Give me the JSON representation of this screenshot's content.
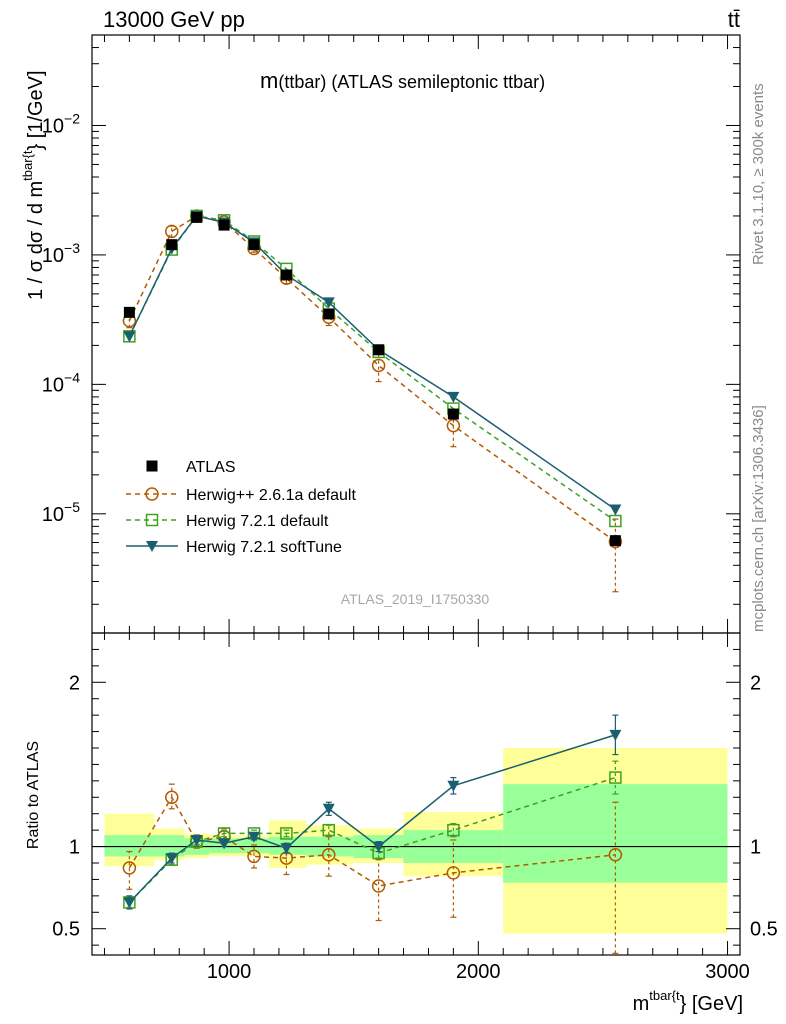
{
  "header": {
    "energy": "13000 GeV pp",
    "process": "tt̄",
    "title_m": "m",
    "title_rest": "(ttbar) (ATLAS semileptonic ttbar)",
    "rivet": "Rivet 3.1.10, ≥ 300k events",
    "mcplots": "mcplots.cern.ch [arXiv:1306.3436]",
    "analysis": "ATLAS_2019_I1750330"
  },
  "labels": {
    "ylabel_main_pre": "1 / σ dσ / d m",
    "ylabel_main_sup": "tbar{t",
    "ylabel_main_post": "} [1/GeV]",
    "ylabel_ratio": "Ratio to ATLAS",
    "xlabel_pre": "m",
    "xlabel_sup": "tbar{t",
    "xlabel_post": "} [GeV]"
  },
  "colors": {
    "data": "#000000",
    "herwigpp": "#b35a00",
    "herwig721": "#3fa124",
    "softtune": "#1b5e70",
    "band_inner": "#99ff99",
    "band_outer": "#ffff99"
  },
  "chart_data": [
    {
      "type": "line",
      "scale": "log",
      "xlim": [
        450,
        3050
      ],
      "ylim": [
        1.2e-06,
        0.05
      ],
      "yticks": [
        {
          "value": 1e-05,
          "base": "10",
          "exp": "−5"
        },
        {
          "value": 0.0001,
          "base": "10",
          "exp": "−4"
        },
        {
          "value": 0.001,
          "base": "10",
          "exp": "−3"
        },
        {
          "value": 0.01,
          "base": "10",
          "exp": "−2"
        }
      ],
      "x": [
        600,
        770,
        870,
        980,
        1100,
        1230,
        1400,
        1600,
        1900,
        2550
      ],
      "series": [
        {
          "name": "ATLAS",
          "key": "data",
          "marker": "square-filled",
          "values": [
            0.00036,
            0.0012,
            0.00195,
            0.0017,
            0.0012,
            0.0007,
            0.00035,
            0.000185,
            5.9e-05,
            6.2e-06
          ]
        },
        {
          "name": "Herwig++ 2.6.1a default",
          "key": "herwigpp",
          "marker": "circle-open",
          "dash": true,
          "values": [
            0.00031,
            0.00152,
            0.002,
            0.0018,
            0.00112,
            0.00066,
            0.00033,
            0.00014,
            4.8e-05,
            6.1e-06
          ],
          "err_lo": [
            3.6e-05,
            0.00015,
            0.0001,
            9e-05,
            7e-05,
            6e-05,
            4.5e-05,
            3.5e-05,
            1.5e-05,
            3.6e-06
          ],
          "err_hi": [
            3.6e-05,
            0.00015,
            0.0001,
            9e-05,
            7e-05,
            6e-05,
            4.5e-05,
            3.5e-05,
            1.5e-05,
            3e-06
          ]
        },
        {
          "name": "Herwig 7.2.1 default",
          "key": "herwig721",
          "marker": "square-open",
          "dash": true,
          "values": [
            0.000235,
            0.0011,
            0.002,
            0.00185,
            0.00127,
            0.00078,
            0.000385,
            0.000178,
            6.5e-05,
            8.8e-06
          ]
        },
        {
          "name": "Herwig 7.2.1 softTune",
          "key": "softtune",
          "marker": "triangle-down-filled",
          "values": [
            0.000235,
            0.00112,
            0.002,
            0.00178,
            0.00125,
            0.0007,
            0.00043,
            0.000185,
            8e-05,
            1.08e-05
          ]
        }
      ]
    },
    {
      "type": "line",
      "scale": "ratio",
      "xlim": [
        450,
        3050
      ],
      "ylim": [
        0.34,
        2.3
      ],
      "ylabel": "Ratio to ATLAS",
      "yticks": [
        0.5,
        1,
        2
      ],
      "xticks": [
        1000,
        2000,
        3000
      ],
      "bins": [
        {
          "lo": 500,
          "hi": 700,
          "inner": [
            0.94,
            1.07
          ],
          "outer": [
            0.88,
            1.2
          ]
        },
        {
          "lo": 700,
          "hi": 820,
          "inner": [
            0.94,
            1.07
          ],
          "outer": [
            0.92,
            1.11
          ]
        },
        {
          "lo": 820,
          "hi": 920,
          "inner": [
            0.95,
            1.05
          ],
          "outer": [
            0.93,
            1.08
          ]
        },
        {
          "lo": 920,
          "hi": 1040,
          "inner": [
            0.96,
            1.05
          ],
          "outer": [
            0.94,
            1.07
          ]
        },
        {
          "lo": 1040,
          "hi": 1160,
          "inner": [
            0.96,
            1.05
          ],
          "outer": [
            0.94,
            1.07
          ]
        },
        {
          "lo": 1160,
          "hi": 1310,
          "inner": [
            0.95,
            1.06
          ],
          "outer": [
            0.87,
            1.16
          ]
        },
        {
          "lo": 1310,
          "hi": 1500,
          "inner": [
            0.94,
            1.06
          ],
          "outer": [
            0.89,
            1.13
          ]
        },
        {
          "lo": 1500,
          "hi": 1700,
          "inner": [
            0.93,
            1.07
          ],
          "outer": [
            0.9,
            1.11
          ]
        },
        {
          "lo": 1700,
          "hi": 2100,
          "inner": [
            0.9,
            1.1
          ],
          "outer": [
            0.82,
            1.21
          ]
        },
        {
          "lo": 2100,
          "hi": 3000,
          "inner": [
            0.78,
            1.38
          ],
          "outer": [
            0.47,
            1.6
          ]
        }
      ],
      "x": [
        600,
        770,
        870,
        980,
        1100,
        1230,
        1400,
        1600,
        1900,
        2550
      ],
      "series": [
        {
          "name": "Herwig++ 2.6.1a default",
          "key": "herwigpp",
          "marker": "circle-open",
          "dash": true,
          "values": [
            0.87,
            1.3,
            1.03,
            1.06,
            0.94,
            0.93,
            0.95,
            0.76,
            0.84,
            0.95
          ],
          "err_lo": [
            0.13,
            0.07,
            0.04,
            0.05,
            0.07,
            0.1,
            0.13,
            0.21,
            0.27,
            0.6
          ],
          "err_hi": [
            0.1,
            0.08,
            0.04,
            0.05,
            0.07,
            0.09,
            0.11,
            0.16,
            0.2,
            0.32
          ]
        },
        {
          "name": "Herwig 7.2.1 default",
          "key": "herwig721",
          "marker": "square-open",
          "dash": true,
          "values": [
            0.66,
            0.92,
            1.03,
            1.08,
            1.08,
            1.08,
            1.1,
            0.96,
            1.1,
            1.42
          ],
          "err_lo": [
            0.03,
            0.03,
            0.02,
            0.02,
            0.02,
            0.02,
            0.03,
            0.03,
            0.04,
            0.1
          ],
          "err_hi": [
            0.03,
            0.03,
            0.02,
            0.02,
            0.02,
            0.02,
            0.03,
            0.03,
            0.04,
            0.1
          ]
        },
        {
          "name": "Herwig 7.2.1 softTune",
          "key": "softtune",
          "marker": "triangle-down-filled",
          "values": [
            0.66,
            0.93,
            1.04,
            1.02,
            1.06,
            0.99,
            1.23,
            1.0,
            1.37,
            1.68
          ],
          "err_lo": [
            0.04,
            0.03,
            0.03,
            0.02,
            0.02,
            0.03,
            0.04,
            0.03,
            0.05,
            0.12
          ],
          "err_hi": [
            0.04,
            0.03,
            0.03,
            0.02,
            0.02,
            0.03,
            0.04,
            0.03,
            0.05,
            0.12
          ]
        }
      ]
    }
  ]
}
